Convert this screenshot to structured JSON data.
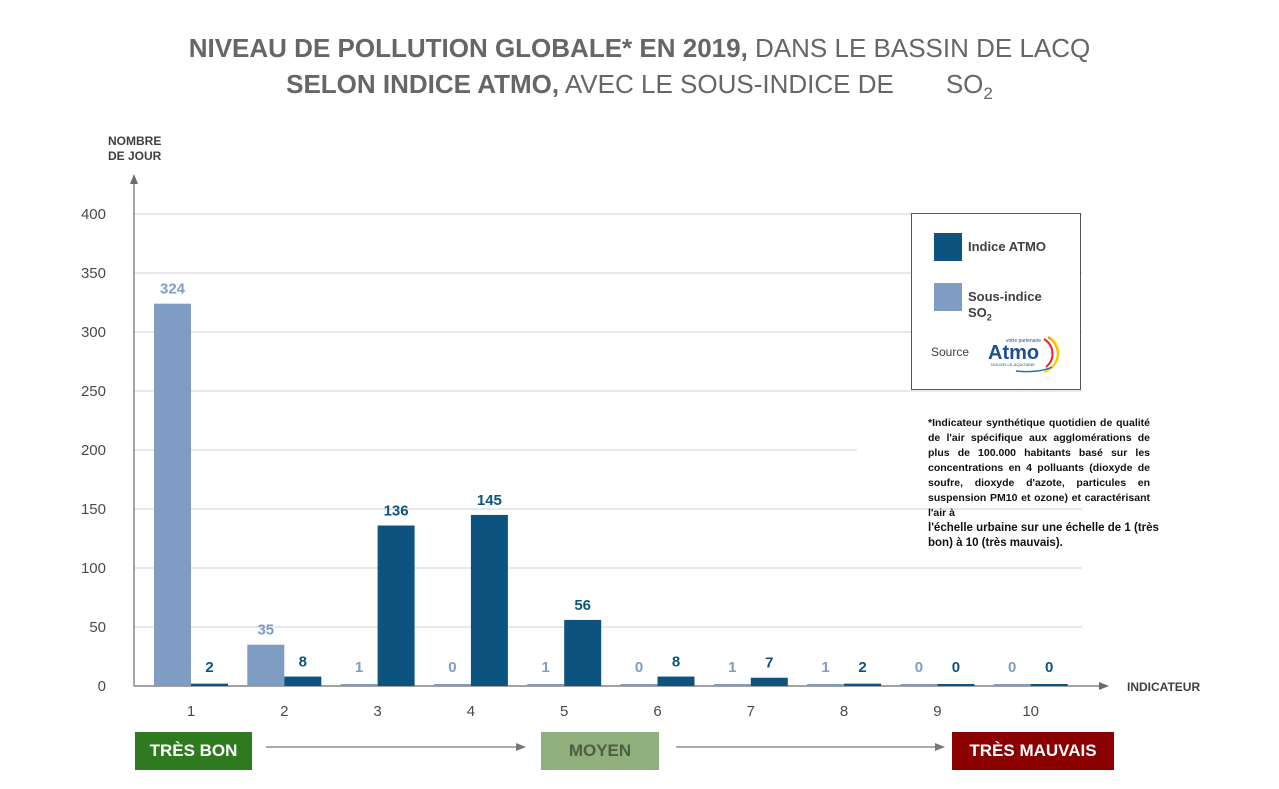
{
  "title": {
    "line1_bold": "NIVEAU DE POLLUTION GLOBALE* EN 2019,",
    "line1_rest": " DANS LE BASSIN DE LACQ",
    "line2_bold": "SELON INDICE ATMO,",
    "line2_rest": " AVEC LE SOUS-INDICE  DE",
    "line2_chem": "SO",
    "line2_sub": "2"
  },
  "axis": {
    "ylabel_line1": "NOMBRE",
    "ylabel_line2": "DE JOUR",
    "xlabel": "INDICATEUR"
  },
  "chart_data": {
    "type": "bar",
    "categories": [
      "1",
      "2",
      "3",
      "4",
      "5",
      "6",
      "7",
      "8",
      "9",
      "10"
    ],
    "series": [
      {
        "name": "Sous-indice SO2",
        "color": "#7f9cc3",
        "label_color": "#7f9cc3",
        "values": [
          324,
          35,
          1,
          0,
          1,
          0,
          1,
          1,
          0,
          0
        ]
      },
      {
        "name": "Indice ATMO",
        "color": "#0d5380",
        "label_color": "#0d5380",
        "values": [
          2,
          8,
          136,
          145,
          56,
          8,
          7,
          2,
          0,
          0
        ]
      }
    ],
    "yticks": [
      0,
      50,
      100,
      150,
      200,
      250,
      300,
      350,
      400
    ],
    "ylim": [
      0,
      400
    ],
    "grid": true
  },
  "legend": {
    "atmo_label": "Indice ATMO",
    "so2_label": "Sous-indice",
    "so2_chem": "SO",
    "so2_sub": "2",
    "source_label": "Source",
    "logo_tagline": "votre partenaire",
    "logo_word": "Atmo",
    "logo_region": "NOUVELLE-AQUITAINE"
  },
  "note": {
    "text": "*Indicateur synthétique quotidien de qualité de l'air spécifique aux agglomérations de plus de 100.000 habitants basé sur les concentrations en 4 polluants (dioxyde de soufre, dioxyde d'azote, particules en suspension PM10 et ozone) et caractérisant l'air à",
    "text_end": "l'échelle urbaine sur une échelle de 1 (très bon) à 10 (très mauvais)."
  },
  "scale": {
    "good_label": "TRÈS BON",
    "mid_label": "MOYEN",
    "bad_label": "TRÈS MAUVAIS",
    "good_color": "#2e7a1f",
    "mid_color": "#8fb07d",
    "bad_color": "#8b0000"
  }
}
